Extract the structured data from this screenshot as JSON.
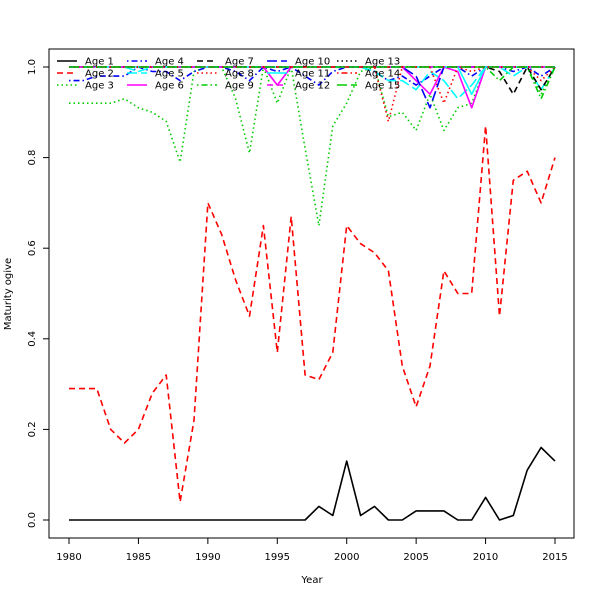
{
  "chart_data": {
    "type": "line",
    "title": "",
    "xlabel": "Year",
    "ylabel": "Maturity ogive",
    "xlim": [
      1980,
      2015
    ],
    "ylim": [
      0,
      1
    ],
    "x_ticks": [
      1980,
      1985,
      1990,
      1995,
      2000,
      2005,
      2010,
      2015
    ],
    "y_ticks": [
      0.0,
      0.2,
      0.4,
      0.6,
      0.8,
      1.0
    ],
    "y_tick_labels": [
      "0.0",
      "0.2",
      "0.4",
      "0.6",
      "0.8",
      "1.0"
    ],
    "grid": false,
    "legend_position": "top-left, inside plot, 5 columns",
    "x": [
      1980,
      1981,
      1982,
      1983,
      1984,
      1985,
      1986,
      1987,
      1988,
      1989,
      1990,
      1991,
      1992,
      1993,
      1994,
      1995,
      1996,
      1997,
      1998,
      1999,
      2000,
      2001,
      2002,
      2003,
      2004,
      2005,
      2006,
      2007,
      2008,
      2009,
      2010,
      2011,
      2012,
      2013,
      2014,
      2015
    ],
    "series": [
      {
        "name": "Age 1",
        "color": "#000000",
        "dash": "solid",
        "values": [
          0,
          0,
          0,
          0,
          0,
          0,
          0,
          0,
          0,
          0,
          0,
          0,
          0,
          0,
          0,
          0,
          0,
          0,
          0.03,
          0.01,
          0.13,
          0.01,
          0.03,
          0,
          0,
          0.02,
          0.02,
          0.02,
          0,
          0,
          0.05,
          0,
          0.01,
          0.11,
          0.16,
          0.13
        ]
      },
      {
        "name": "Age 2",
        "color": "#ff0000",
        "dash": "dashed",
        "values": [
          0.29,
          0.29,
          0.29,
          0.2,
          0.17,
          0.2,
          0.28,
          0.32,
          0.04,
          0.22,
          0.7,
          0.63,
          0.53,
          0.45,
          0.65,
          0.37,
          0.67,
          0.32,
          0.31,
          0.37,
          0.65,
          0.61,
          0.59,
          0.55,
          0.34,
          0.25,
          0.34,
          0.55,
          0.5,
          0.5,
          0.87,
          0.45,
          0.75,
          0.77,
          0.7,
          0.8
        ]
      },
      {
        "name": "Age 3",
        "color": "#00cd00",
        "dash": "dotted",
        "values": [
          0.92,
          0.92,
          0.92,
          0.92,
          0.93,
          0.91,
          0.9,
          0.88,
          0.79,
          0.99,
          1,
          1,
          0.93,
          0.81,
          1,
          0.92,
          1,
          0.82,
          0.65,
          0.87,
          0.92,
          0.99,
          1,
          0.89,
          0.9,
          0.86,
          0.94,
          0.86,
          0.91,
          0.92,
          1,
          1,
          1,
          1,
          0.94,
          1
        ]
      },
      {
        "name": "Age 4",
        "color": "#0000ff",
        "dash": "dashdot",
        "values": [
          0.97,
          0.97,
          0.98,
          0.98,
          0.98,
          1,
          0.99,
          0.99,
          0.97,
          0.99,
          1,
          1,
          0.99,
          0.97,
          1,
          0.99,
          1,
          0.98,
          0.96,
          0.99,
          1,
          1,
          0.99,
          0.97,
          0.98,
          0.96,
          0.98,
          1,
          1,
          0.98,
          1,
          1,
          0.99,
          1,
          0.98,
          1
        ]
      },
      {
        "name": "Age 5",
        "color": "#00ffff",
        "dash": "longdash",
        "values": [
          1,
          1,
          1,
          1,
          1,
          0.99,
          1,
          1,
          1,
          1,
          1,
          1,
          1,
          1,
          1,
          1,
          1,
          1,
          1,
          1,
          1,
          1,
          0.99,
          0.97,
          0.97,
          0.95,
          0.99,
          0.97,
          0.93,
          0.96,
          1,
          1,
          0.98,
          1,
          0.95,
          1
        ]
      },
      {
        "name": "Age 6",
        "color": "#ff00ff",
        "dash": "solid",
        "values": [
          1,
          1,
          1,
          1,
          1,
          1,
          1,
          1,
          1,
          1,
          1,
          1,
          1,
          1,
          1,
          0.96,
          1,
          1,
          1,
          1,
          1,
          1,
          1,
          1,
          1,
          0.97,
          0.94,
          1,
          0.99,
          0.91,
          1,
          1,
          1,
          1,
          1,
          1
        ]
      },
      {
        "name": "Age 7",
        "color": "#000000",
        "dash": "dashed",
        "values": [
          1,
          1,
          1,
          1,
          1,
          1,
          1,
          1,
          1,
          1,
          1,
          1,
          1,
          1,
          1,
          1,
          1,
          1,
          1,
          1,
          1,
          1,
          1,
          1,
          1,
          1,
          1,
          1,
          1,
          1,
          1,
          0.99,
          0.94,
          1,
          0.95,
          1
        ]
      },
      {
        "name": "Age 8",
        "color": "#ff0000",
        "dash": "dotted",
        "values": [
          1,
          1,
          1,
          1,
          1,
          1,
          1,
          1,
          1,
          1,
          1,
          1,
          1,
          1,
          1,
          1,
          1,
          1,
          1,
          1,
          1,
          1,
          1,
          0.88,
          1,
          1,
          1,
          0.92,
          1,
          0.99,
          1,
          1,
          1,
          1,
          0.97,
          1
        ]
      },
      {
        "name": "Age 9",
        "color": "#00cd00",
        "dash": "dashdot",
        "values": [
          1,
          1,
          1,
          1,
          1,
          1,
          1,
          1,
          1,
          1,
          1,
          1,
          1,
          1,
          1,
          1,
          1,
          1,
          1,
          1,
          1,
          1,
          1,
          1,
          1,
          1,
          1,
          1,
          1,
          1,
          1,
          0.97,
          1,
          1,
          0.93,
          1
        ]
      },
      {
        "name": "Age 10",
        "color": "#0000ff",
        "dash": "longdash",
        "values": [
          1,
          1,
          1,
          1,
          1,
          1,
          1,
          1,
          1,
          1,
          1,
          1,
          1,
          1,
          1,
          1,
          1,
          1,
          1,
          1,
          1,
          1,
          1,
          1,
          1,
          0.98,
          0.91,
          1,
          1,
          1,
          1,
          1,
          1,
          1,
          1,
          1
        ]
      },
      {
        "name": "Age 11",
        "color": "#00ffff",
        "dash": "solid",
        "values": [
          1,
          1,
          1,
          1,
          1,
          1,
          1,
          1,
          1,
          1,
          1,
          1,
          1,
          1,
          1,
          1,
          1,
          1,
          1,
          1,
          1,
          1,
          1,
          1,
          1,
          1,
          1,
          1,
          1,
          0.94,
          1,
          1,
          1,
          1,
          1,
          1
        ]
      },
      {
        "name": "Age 12",
        "color": "#ff00ff",
        "dash": "dashed",
        "values": [
          1,
          1,
          1,
          1,
          1,
          1,
          1,
          1,
          1,
          1,
          1,
          1,
          1,
          1,
          1,
          1,
          1,
          1,
          1,
          1,
          1,
          1,
          1,
          1,
          1,
          1,
          1,
          1,
          1,
          1,
          1,
          1,
          1,
          1,
          1,
          1
        ]
      },
      {
        "name": "Age 13",
        "color": "#000000",
        "dash": "dotted",
        "values": [
          1,
          1,
          1,
          1,
          1,
          1,
          1,
          1,
          1,
          1,
          1,
          1,
          1,
          1,
          1,
          1,
          1,
          1,
          1,
          1,
          1,
          1,
          1,
          1,
          1,
          1,
          1,
          1,
          1,
          1,
          1,
          1,
          1,
          1,
          1,
          1
        ]
      },
      {
        "name": "Age 14",
        "color": "#ff0000",
        "dash": "dashdot",
        "values": [
          1,
          1,
          1,
          1,
          1,
          1,
          1,
          1,
          1,
          1,
          1,
          1,
          1,
          1,
          1,
          1,
          1,
          1,
          1,
          1,
          1,
          1,
          1,
          1,
          1,
          1,
          1,
          1,
          1,
          1,
          1,
          1,
          1,
          1,
          1,
          1
        ]
      },
      {
        "name": "Age 15",
        "color": "#00cd00",
        "dash": "longdash",
        "values": [
          1,
          1,
          1,
          1,
          1,
          1,
          1,
          1,
          1,
          1,
          1,
          1,
          1,
          1,
          1,
          1,
          1,
          1,
          1,
          1,
          1,
          1,
          1,
          1,
          1,
          1,
          1,
          1,
          1,
          1,
          1,
          1,
          1,
          1,
          1,
          1
        ]
      }
    ]
  }
}
